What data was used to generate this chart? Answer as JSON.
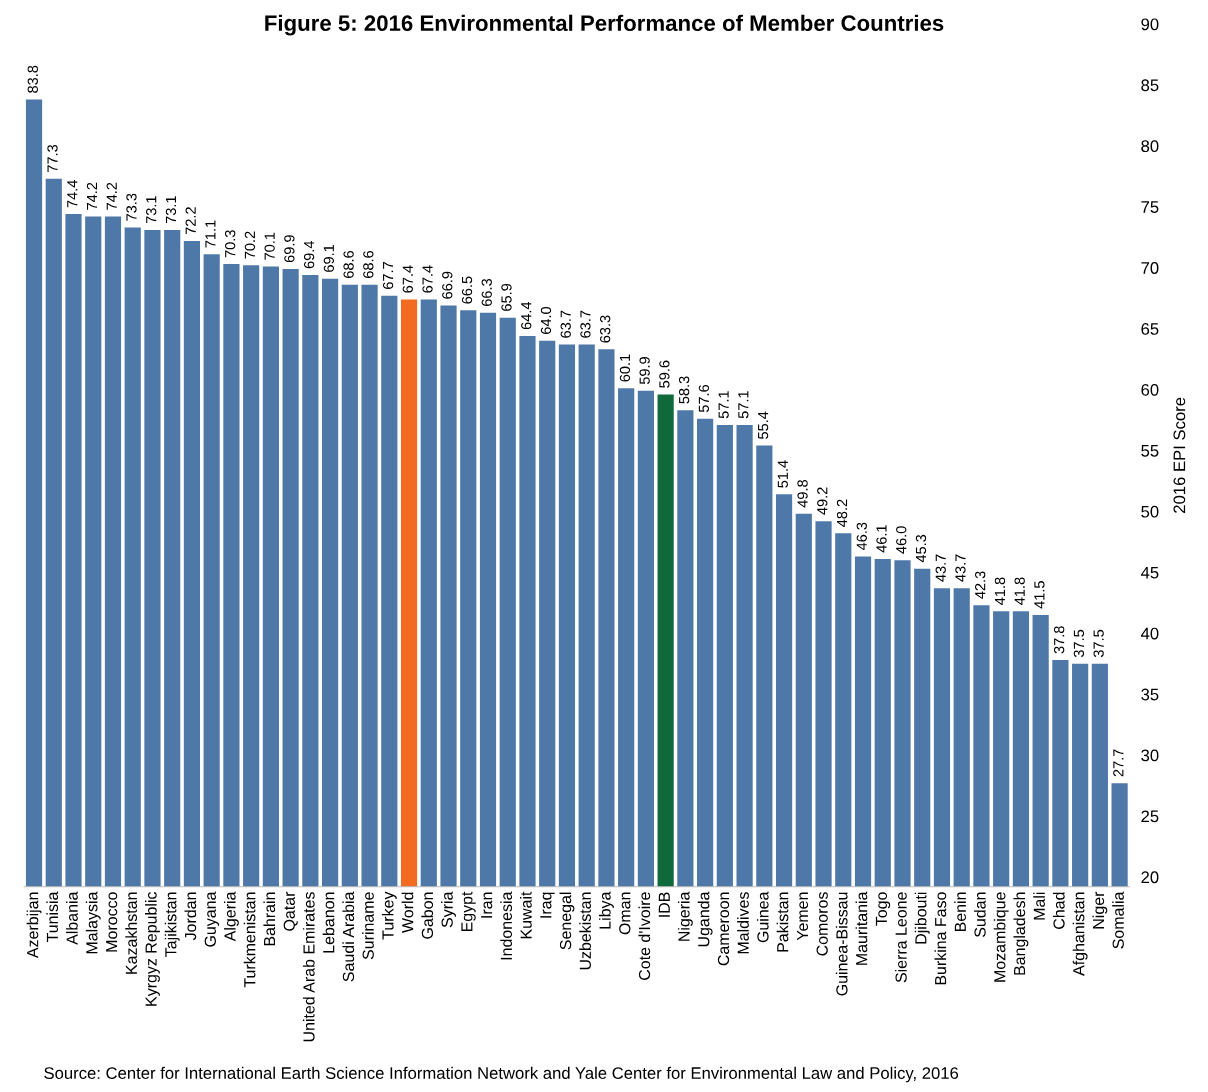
{
  "chart_data": {
    "type": "bar",
    "title": "Figure 5: 2016 Environmental Performance of Member Countries",
    "ylabel": "2016 EPI Score",
    "categories": [
      "Azerbijan",
      "Tunisia",
      "Albania",
      "Malaysia",
      "Morocco",
      "Kazakhstan",
      "Kyrgyz Republic",
      "Tajikistan",
      "Jordan",
      "Guyana",
      "Algeria",
      "Turkmenistan",
      "Bahrain",
      "Qatar",
      "United Arab Emirates",
      "Lebanon",
      "Saudi Arabia",
      "Suriname",
      "Turkey",
      "World",
      "Gabon",
      "Syria",
      "Egypt",
      "Iran",
      "Indonesia",
      "Kuwait",
      "Iraq",
      "Senegal",
      "Uzbekistan",
      "Libya",
      "Oman",
      "Cote d'Ivoire",
      "IDB",
      "Nigeria",
      "Uganda",
      "Cameroon",
      "Maldives",
      "Guinea",
      "Pakistan",
      "Yemen",
      "Comoros",
      "Guinea-Bissau",
      "Mauritania",
      "Togo",
      "Sierra Leone",
      "Djibouti",
      "Burkina Faso",
      "Benin",
      "Sudan",
      "Mozambique",
      "Bangladesh",
      "Mali",
      "Chad",
      "Afghanistan",
      "Niger",
      "Somalia"
    ],
    "values": [
      83.8,
      77.3,
      74.4,
      74.2,
      74.2,
      73.3,
      73.1,
      73.1,
      72.2,
      71.1,
      70.3,
      70.2,
      70.1,
      69.9,
      69.4,
      69.1,
      68.6,
      68.6,
      67.7,
      67.4,
      67.4,
      66.9,
      66.5,
      66.3,
      65.9,
      64.4,
      64.0,
      63.7,
      63.7,
      63.3,
      60.1,
      59.9,
      59.6,
      58.3,
      57.6,
      57.1,
      57.1,
      55.4,
      51.4,
      49.8,
      49.2,
      48.2,
      46.3,
      46.1,
      46.0,
      45.3,
      43.7,
      43.7,
      42.3,
      41.8,
      41.8,
      41.5,
      37.8,
      37.5,
      37.5,
      27.7
    ],
    "colors": [
      "#4e78a8",
      "#4e78a8",
      "#4e78a8",
      "#4e78a8",
      "#4e78a8",
      "#4e78a8",
      "#4e78a8",
      "#4e78a8",
      "#4e78a8",
      "#4e78a8",
      "#4e78a8",
      "#4e78a8",
      "#4e78a8",
      "#4e78a8",
      "#4e78a8",
      "#4e78a8",
      "#4e78a8",
      "#4e78a8",
      "#4e78a8",
      "#f26b21",
      "#4e78a8",
      "#4e78a8",
      "#4e78a8",
      "#4e78a8",
      "#4e78a8",
      "#4e78a8",
      "#4e78a8",
      "#4e78a8",
      "#4e78a8",
      "#4e78a8",
      "#4e78a8",
      "#4e78a8",
      "#10693a",
      "#4e78a8",
      "#4e78a8",
      "#4e78a8",
      "#4e78a8",
      "#4e78a8",
      "#4e78a8",
      "#4e78a8",
      "#4e78a8",
      "#4e78a8",
      "#4e78a8",
      "#4e78a8",
      "#4e78a8",
      "#4e78a8",
      "#4e78a8",
      "#4e78a8",
      "#4e78a8",
      "#4e78a8",
      "#4e78a8",
      "#4e78a8",
      "#4e78a8",
      "#4e78a8",
      "#4e78a8",
      "#4e78a8"
    ],
    "ylim": [
      19.2,
      90
    ],
    "yticks": [
      20,
      25,
      30,
      35,
      40,
      45,
      50,
      55,
      60,
      65,
      70,
      75,
      80,
      85,
      90
    ],
    "value_labels": [
      "83.8",
      "77.3",
      "74.4",
      "74.2",
      "74.2",
      "73.3",
      "73.1",
      "73.1",
      "72.2",
      "71.1",
      "70.3",
      "70.2",
      "70.1",
      "69.9",
      "69.4",
      "69.1",
      "68.6",
      "68.6",
      "67.7",
      "67.4",
      "67.4",
      "66.9",
      "66.5",
      "66.3",
      "65.9",
      "64.4",
      "64.0",
      "63.7",
      "63.7",
      "63.3",
      "60.1",
      "59.9",
      "59.6",
      "58.3",
      "57.6",
      "57.1",
      "57.1",
      "55.4",
      "51.4",
      "49.8",
      "49.2",
      "48.2",
      "46.3",
      "46.1",
      "46.0",
      "45.3",
      "43.7",
      "43.7",
      "42.3",
      "41.8",
      "41.8",
      "41.5",
      "37.8",
      "37.5",
      "37.5",
      "27.7"
    ],
    "grid": false,
    "legend": false,
    "annotations": [
      "Source: Center for International Earth Science Information Network and Yale Center for Environmental Law and Policy, 2016"
    ]
  }
}
